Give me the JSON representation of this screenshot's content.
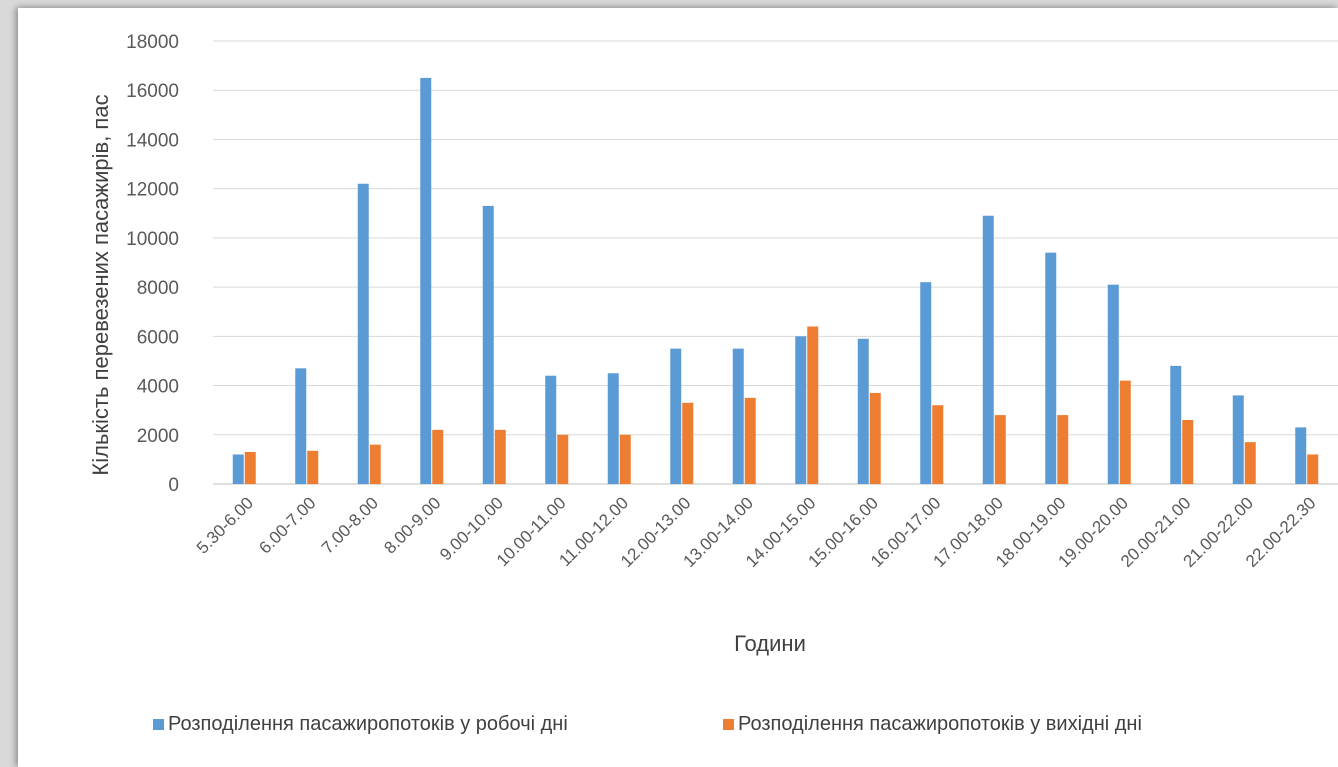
{
  "chart_data": {
    "type": "bar",
    "xlabel": "Години",
    "ylabel": "Кількість перевезених  пасажирів, пас",
    "ylim": [
      0,
      18000
    ],
    "yticks": [
      0,
      2000,
      4000,
      6000,
      8000,
      10000,
      12000,
      14000,
      16000,
      18000
    ],
    "grid": true,
    "legend_position": "bottom",
    "categories": [
      "5.30-6.00",
      "6.00-7.00",
      "7.00-8.00",
      "8.00-9.00",
      "9.00-10.00",
      "10.00-11.00",
      "11.00-12.00",
      "12.00-13.00",
      "13.00-14.00",
      "14.00-15.00",
      "15.00-16.00",
      "16.00-17.00",
      "17.00-18.00",
      "18.00-19.00",
      "19.00-20.00",
      "20.00-21.00",
      "21.00-22.00",
      "22.00-22.30"
    ],
    "series": [
      {
        "name": "Розподілення пасажиропотоків у робочі дні",
        "color": "#5b9bd5",
        "values": [
          1200,
          4700,
          12200,
          16500,
          11300,
          4400,
          4500,
          5500,
          5500,
          6000,
          5900,
          8200,
          10900,
          9400,
          8100,
          4800,
          3600,
          2300
        ]
      },
      {
        "name": "Розподілення пасажиропотоків у вихідні дні",
        "color": "#ed7d31",
        "values": [
          1300,
          1350,
          1600,
          2200,
          2200,
          2000,
          2000,
          3300,
          3500,
          6400,
          3700,
          3200,
          2800,
          2800,
          4200,
          2600,
          1700,
          1200
        ]
      }
    ]
  }
}
